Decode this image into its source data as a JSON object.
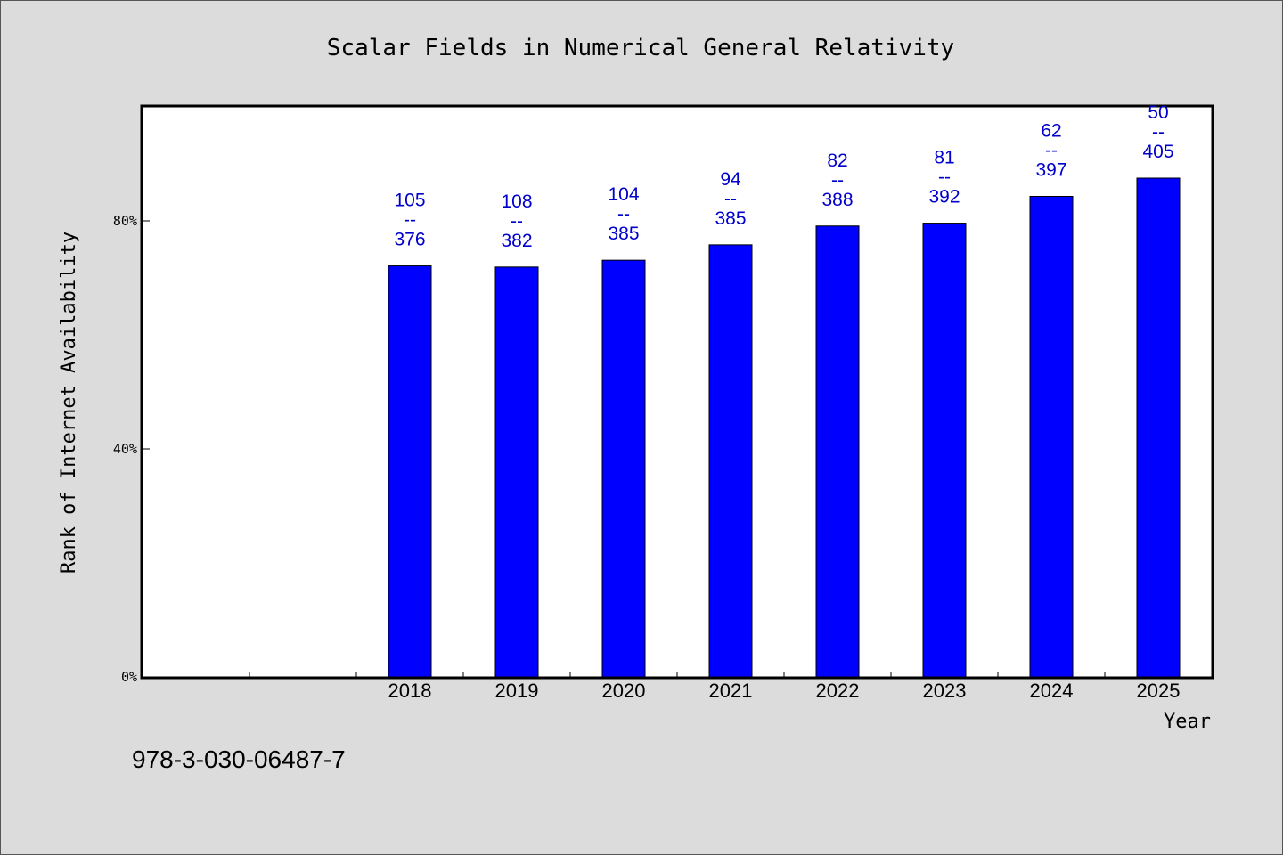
{
  "chart_data": {
    "type": "bar",
    "title": "Scalar Fields in Numerical General Relativity",
    "xlabel": "Year",
    "ylabel": "Rank of Internet Availability",
    "categories": [
      "",
      "",
      "2018",
      "2019",
      "2020",
      "2021",
      "2022",
      "2023",
      "2024",
      "2025"
    ],
    "values": [
      null,
      null,
      72.1,
      71.9,
      73.1,
      75.8,
      79.1,
      79.6,
      84.3,
      87.5
    ],
    "data_labels": [
      null,
      null,
      [
        "105",
        "--",
        "376"
      ],
      [
        "108",
        "--",
        "382"
      ],
      [
        "104",
        "--",
        "385"
      ],
      [
        "94",
        "--",
        "385"
      ],
      [
        "82",
        "--",
        "388"
      ],
      [
        "81",
        "--",
        "392"
      ],
      [
        "62",
        "--",
        "397"
      ],
      [
        "50",
        "--",
        "405"
      ]
    ],
    "ylim": [
      0,
      100
    ],
    "yticks": [
      0,
      40,
      80
    ],
    "ytick_labels": [
      "0%",
      "40%",
      "80%"
    ],
    "grid": false,
    "bar_color": "#0000ff",
    "label_color": "#0000cc"
  },
  "footer": {
    "isbn": "978-3-030-06487-7"
  }
}
